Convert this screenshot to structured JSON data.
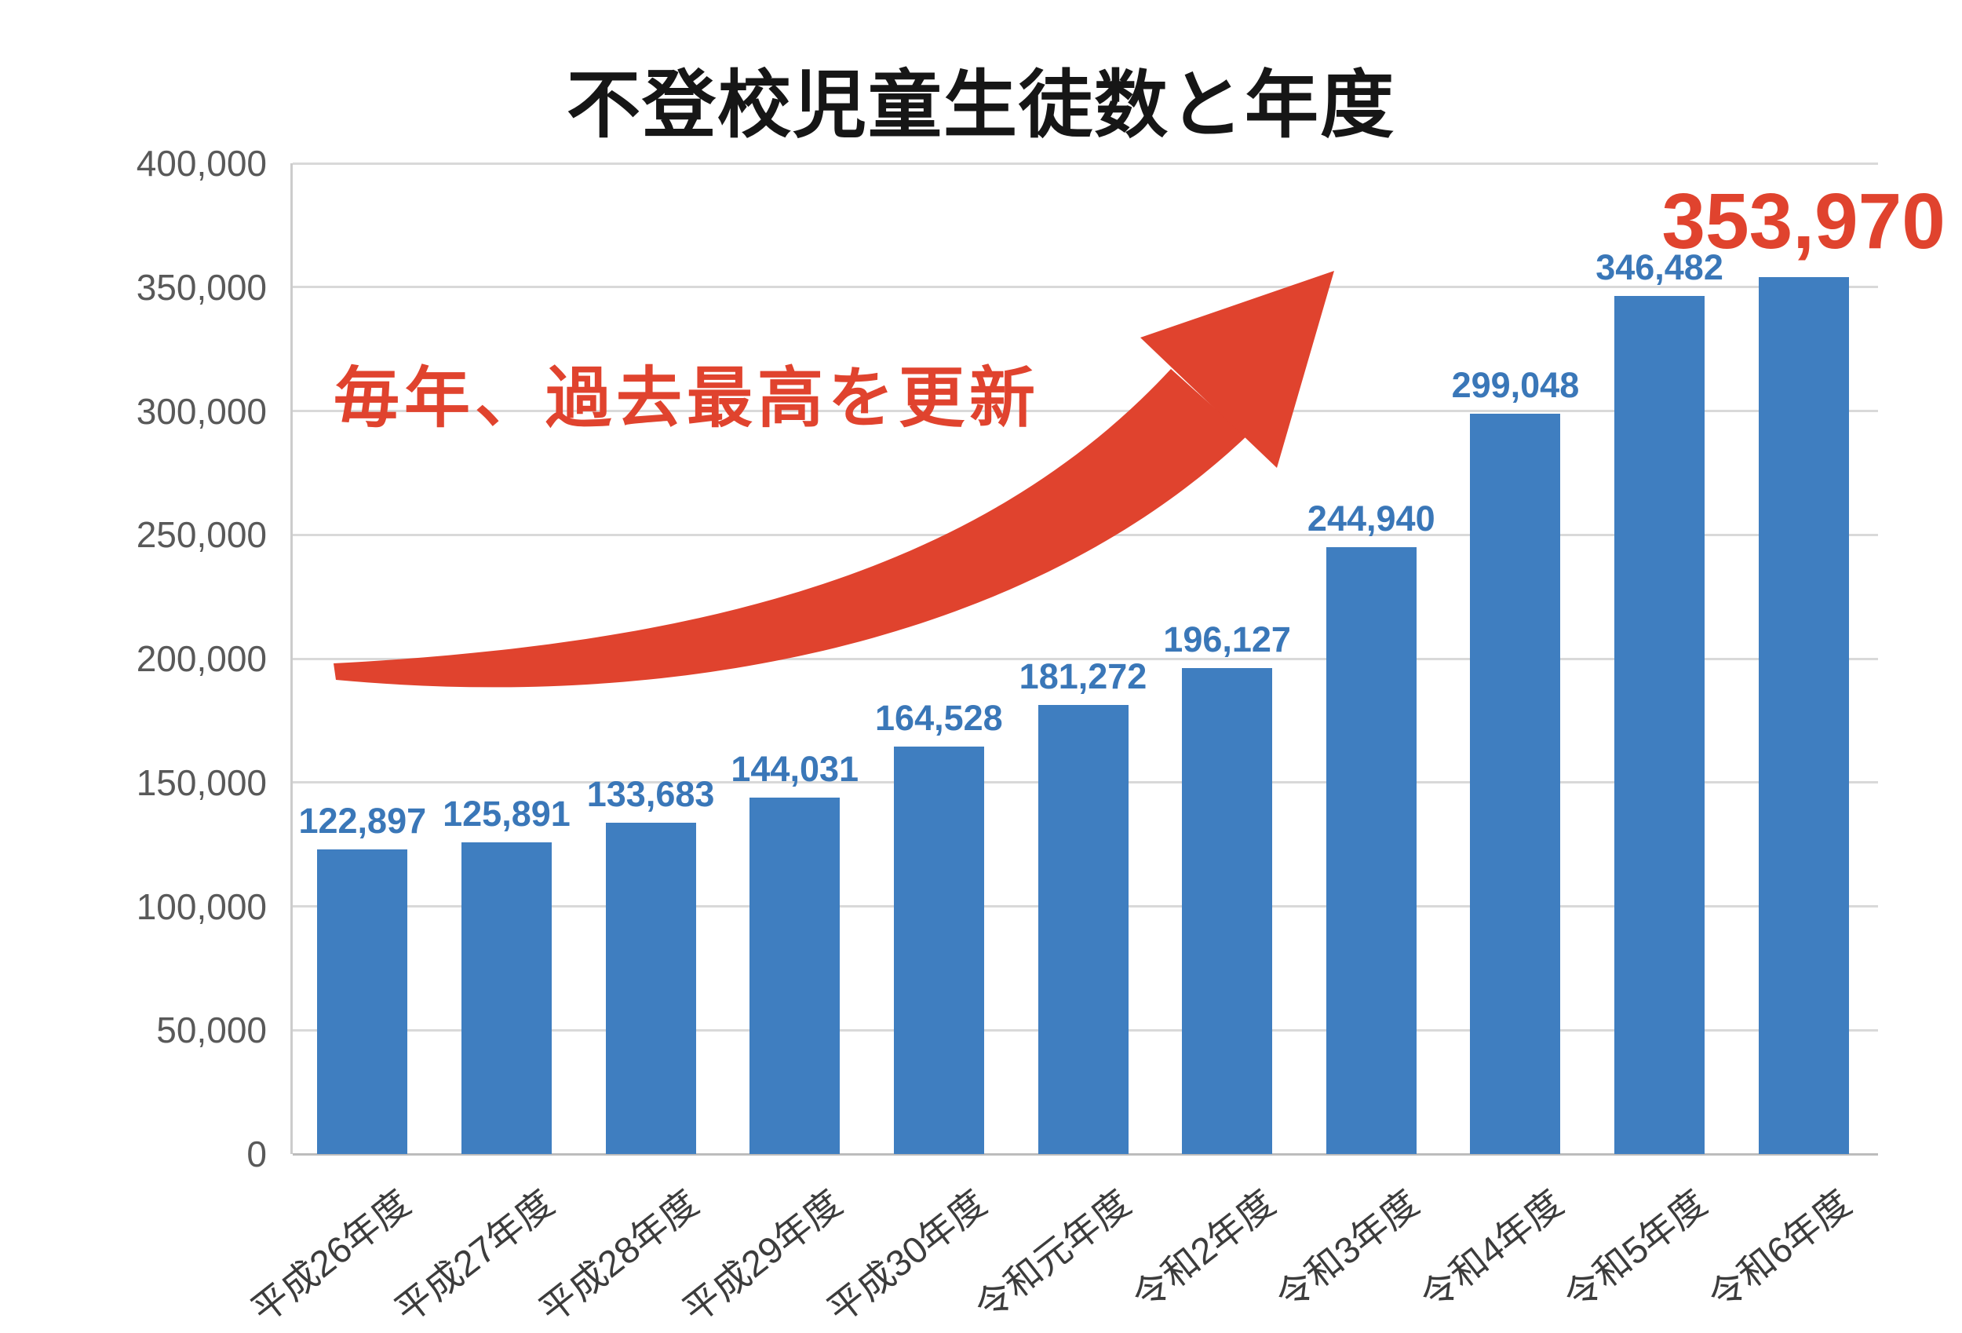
{
  "chart_data": {
    "type": "bar",
    "title": "不登校児童生徒数と年度",
    "categories": [
      "平成26年度",
      "平成27年度",
      "平成28年度",
      "平成29年度",
      "平成30年度",
      "令和元年度",
      "令和2年度",
      "令和3年度",
      "令和4年度",
      "令和5年度",
      "令和6年度"
    ],
    "values": [
      122897,
      125891,
      133683,
      144031,
      164528,
      181272,
      196127,
      244940,
      299048,
      346482,
      353970
    ],
    "value_labels": [
      "122,897",
      "125,891",
      "133,683",
      "144,031",
      "164,528",
      "181,272",
      "196,127",
      "244,940",
      "299,048",
      "346,482",
      "353,970"
    ],
    "highlight_last_value": true,
    "xlabel": "",
    "ylabel": "",
    "ylim": [
      0,
      400000
    ],
    "ytick_step": 50000,
    "ytick_labels": [
      "0",
      "50,000",
      "100,000",
      "150,000",
      "200,000",
      "250,000",
      "300,000",
      "350,000",
      "400,000"
    ],
    "grid": true,
    "legend": false,
    "bar_color": "#3F7EC0",
    "label_color": "#3A77B8",
    "highlight_color": "#E0432E"
  },
  "annotation": {
    "text": "毎年、過去最高を更新",
    "color": "#E0432E",
    "arrow_icon": "trend-up-arrow"
  }
}
